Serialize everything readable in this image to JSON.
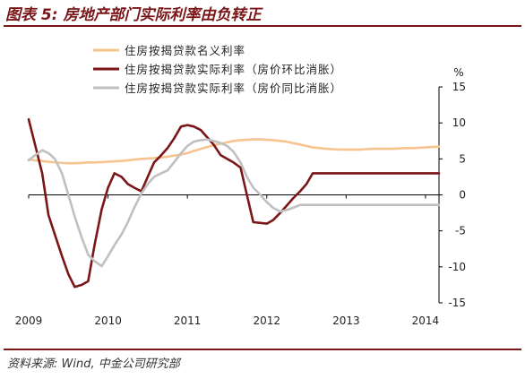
{
  "figure": {
    "title": "图表 5:  房地产部门实际利率由负转正",
    "source": "资料来源: Wind, 中金公司研究部"
  },
  "chart_data": {
    "type": "line",
    "x": [
      2009.0,
      2009.08,
      2009.17,
      2009.25,
      2009.33,
      2009.42,
      2009.5,
      2009.58,
      2009.67,
      2009.75,
      2009.83,
      2009.92,
      2010.0,
      2010.08,
      2010.17,
      2010.25,
      2010.33,
      2010.42,
      2010.5,
      2010.58,
      2010.67,
      2010.75,
      2010.83,
      2010.92,
      2011.0,
      2011.08,
      2011.17,
      2011.25,
      2011.33,
      2011.42,
      2011.5,
      2011.58,
      2011.67,
      2011.75,
      2011.83,
      2011.92,
      2012.0,
      2012.08,
      2012.17,
      2012.25,
      2012.33,
      2012.42,
      2012.5,
      2012.58,
      2012.67,
      2012.75,
      2012.83,
      2012.92,
      2013.0,
      2013.08,
      2013.17,
      2013.25,
      2013.33,
      2013.42,
      2013.5,
      2013.58,
      2013.67,
      2013.75,
      2013.83,
      2013.92,
      2014.0,
      2014.08,
      2014.17
    ],
    "series": [
      {
        "name": "住房按揭贷款名义利率",
        "color": "#f7c48f",
        "values": [
          4.9,
          4.8,
          4.7,
          4.6,
          4.5,
          4.45,
          4.4,
          4.4,
          4.45,
          4.5,
          4.5,
          4.55,
          4.6,
          4.65,
          4.7,
          4.8,
          4.9,
          5.0,
          5.05,
          5.1,
          5.2,
          5.3,
          5.45,
          5.6,
          5.8,
          6.1,
          6.4,
          6.65,
          6.9,
          7.1,
          7.3,
          7.5,
          7.6,
          7.65,
          7.7,
          7.7,
          7.65,
          7.6,
          7.5,
          7.4,
          7.2,
          7.0,
          6.8,
          6.6,
          6.5,
          6.4,
          6.35,
          6.3,
          6.3,
          6.3,
          6.3,
          6.35,
          6.4,
          6.4,
          6.4,
          6.4,
          6.45,
          6.5,
          6.5,
          6.55,
          6.6,
          6.65,
          6.7
        ]
      },
      {
        "name": "住房按揭贷款实际利率（房价环比消胀）",
        "color": "#7a1518",
        "values": [
          10.5,
          7.0,
          3.0,
          -2.8,
          -5.5,
          -8.5,
          -11.0,
          -12.8,
          -12.5,
          -12.0,
          -7.0,
          -2.0,
          1.0,
          3.0,
          2.5,
          1.5,
          1.0,
          0.5,
          2.5,
          4.5,
          5.5,
          6.5,
          7.8,
          9.5,
          9.7,
          9.5,
          9.0,
          8.0,
          7.0,
          5.5,
          5.0,
          4.5,
          3.8,
          0.0,
          -3.8,
          -3.9,
          -4.0,
          -3.5,
          -2.5,
          -1.5,
          -0.5,
          0.5,
          1.5,
          3.0,
          3.0,
          3.0,
          3.0,
          3.0,
          3.0,
          3.0,
          3.0,
          3.0,
          3.0,
          3.0,
          3.0,
          3.0,
          3.0,
          3.0,
          3.0,
          3.0,
          3.0,
          3.0,
          3.0
        ]
      },
      {
        "name": "住房按揭贷款实际利率（房价同比消胀）",
        "color": "#c0c0c0",
        "values": [
          4.8,
          5.5,
          6.2,
          5.8,
          5.0,
          3.0,
          0.0,
          -3.0,
          -6.0,
          -8.3,
          -9.2,
          -9.9,
          -8.5,
          -7.0,
          -5.5,
          -3.8,
          -1.8,
          0.2,
          1.5,
          2.5,
          3.0,
          3.4,
          4.5,
          5.8,
          6.8,
          7.4,
          7.6,
          7.7,
          7.5,
          7.2,
          6.8,
          6.0,
          4.5,
          2.5,
          1.0,
          0.0,
          -1.0,
          -1.8,
          -2.3,
          -2.1,
          -1.8,
          -1.4,
          -1.4,
          -1.4,
          -1.4,
          -1.4,
          -1.4,
          -1.4,
          -1.4,
          -1.4,
          -1.4,
          -1.4,
          -1.4,
          -1.4,
          -1.4,
          -1.4,
          -1.4,
          -1.4,
          -1.4,
          -1.4,
          -1.4,
          -1.4,
          -1.4
        ]
      }
    ],
    "x_tick_labels": [
      "2009",
      "2010",
      "2011",
      "2012",
      "2013",
      "2014"
    ],
    "xlim": [
      2009.0,
      2014.17
    ],
    "y_ticks": [
      15,
      10,
      5,
      0,
      -5,
      -10,
      -15
    ],
    "ylim": [
      -15,
      15
    ],
    "y_unit": "%",
    "y_axis_side": "right",
    "grid": false,
    "legend_position": "top-left"
  }
}
